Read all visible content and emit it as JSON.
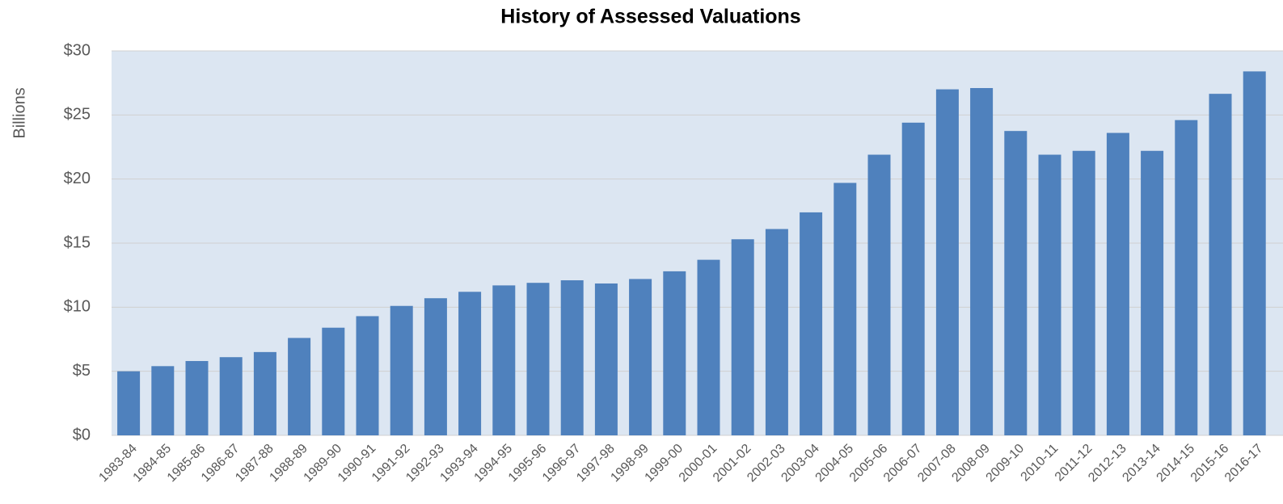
{
  "chart_data": {
    "type": "bar",
    "title": "History of Assessed Valuations",
    "y_label": "Billions",
    "categories": [
      "1983-84",
      "1984-85",
      "1985-86",
      "1986-87",
      "1987-88",
      "1988-89",
      "1989-90",
      "1990-91",
      "1991-92",
      "1992-93",
      "1993-94",
      "1994-95",
      "1995-96",
      "1996-97",
      "1997-98",
      "1998-99",
      "1999-00",
      "2000-01",
      "2001-02",
      "2002-03",
      "2003-04",
      "2004-05",
      "2005-06",
      "2006-07",
      "2007-08",
      "2008-09",
      "2009-10",
      "2010-11",
      "2011-12",
      "2012-13",
      "2013-14",
      "2014-15",
      "2015-16",
      "2016-17"
    ],
    "values": [
      5.0,
      5.4,
      5.8,
      6.1,
      6.5,
      7.6,
      8.4,
      9.3,
      10.1,
      10.7,
      11.2,
      11.7,
      11.9,
      12.1,
      11.85,
      12.2,
      12.8,
      13.7,
      15.3,
      16.1,
      17.4,
      19.7,
      21.9,
      24.4,
      27.0,
      27.1,
      23.75,
      21.9,
      22.2,
      23.6,
      22.2,
      24.6,
      26.65,
      28.4
    ],
    "color": "#4f81bd",
    "plot_background": "#dce6f2",
    "ylim": [
      0,
      30
    ],
    "yticks": [
      {
        "value": 0,
        "label": "$0"
      },
      {
        "value": 5,
        "label": "$5"
      },
      {
        "value": 10,
        "label": "$10"
      },
      {
        "value": 15,
        "label": "$15"
      },
      {
        "value": 20,
        "label": "$20"
      },
      {
        "value": 25,
        "label": "$25"
      },
      {
        "value": 30,
        "label": "$30"
      }
    ],
    "grid": true
  }
}
